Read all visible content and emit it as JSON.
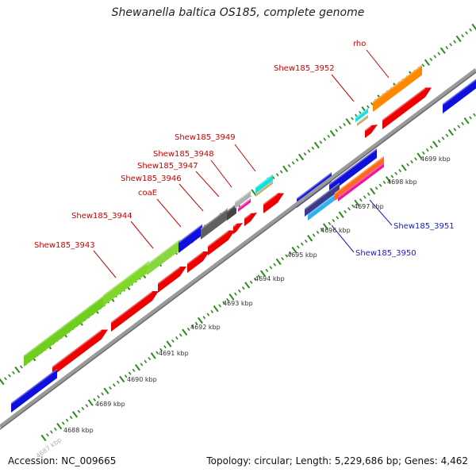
{
  "title": "Shewanella baltica OS185, complete genome",
  "footer": {
    "accession": "Accession: NC_009665",
    "summary": "Topology: circular; Length: 5,229,686 bp; Genes: 4,462"
  },
  "colors": {
    "backbone": "#9a9a9a",
    "tick": "#2a8a1a",
    "forward_label": "#cc0000",
    "reverse_label": "#1a1acc"
  },
  "scale_ticks": [
    "4687 kbp",
    "4688 kbp",
    "4689 kbp",
    "4690 kbp",
    "4691 kbp",
    "4692 kbp",
    "4693 kbp",
    "4694 kbp",
    "4695 kbp",
    "4696 kbp",
    "4697 kbp",
    "4698 kbp",
    "4699 kbp"
  ],
  "gene_labels": [
    {
      "text": "rho",
      "strand": "forward"
    },
    {
      "text": "Shew185_3952",
      "strand": "forward"
    },
    {
      "text": "Shew185_3949",
      "strand": "forward"
    },
    {
      "text": "Shew185_3948",
      "strand": "forward"
    },
    {
      "text": "Shew185_3947",
      "strand": "forward"
    },
    {
      "text": "Shew185_3946",
      "strand": "forward"
    },
    {
      "text": "coaE",
      "strand": "forward"
    },
    {
      "text": "Shew185_3944",
      "strand": "forward"
    },
    {
      "text": "Shew185_3943",
      "strand": "forward"
    },
    {
      "text": "Shew185_3951",
      "strand": "reverse"
    },
    {
      "text": "Shew185_3950",
      "strand": "reverse"
    }
  ]
}
